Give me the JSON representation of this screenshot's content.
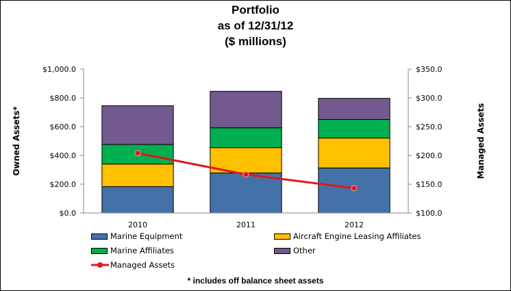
{
  "chart_data": {
    "type": "bar",
    "stacked": true,
    "title": [
      "Portfolio",
      "as of 12/31/12",
      "($ millions)"
    ],
    "categories": [
      "2010",
      "2011",
      "2012"
    ],
    "series": [
      {
        "name": "Marine Equipment",
        "color": "#4472A8",
        "values": [
          183,
          278,
          313
        ]
      },
      {
        "name": "Aircraft Engine Leasing Affiliates",
        "color": "#FFC000",
        "values": [
          157,
          176,
          208
        ]
      },
      {
        "name": "Marine Affiliates",
        "color": "#00B050",
        "values": [
          136,
          138,
          129
        ]
      },
      {
        "name": "Other",
        "color": "#725990",
        "values": [
          270,
          254,
          147
        ]
      }
    ],
    "line_series": {
      "name": "Managed Assets",
      "color": "#E3161B",
      "axis": "right",
      "values": [
        204,
        167,
        143
      ]
    },
    "ylabel": "Owned Assets*",
    "ylim": [
      0,
      1000
    ],
    "yticks": [
      "$0.0",
      "$200.0",
      "$400.0",
      "$600.0",
      "$800.0",
      "$1,000.0"
    ],
    "y2label": "Managed Assets",
    "y2lim": [
      100,
      350
    ],
    "y2ticks": [
      "$100.0",
      "$150.0",
      "$200.0",
      "$250.0",
      "$300.0",
      "$350.0"
    ],
    "grid": false,
    "legend": "bottom",
    "footnote": "* includes off balance sheet assets"
  }
}
